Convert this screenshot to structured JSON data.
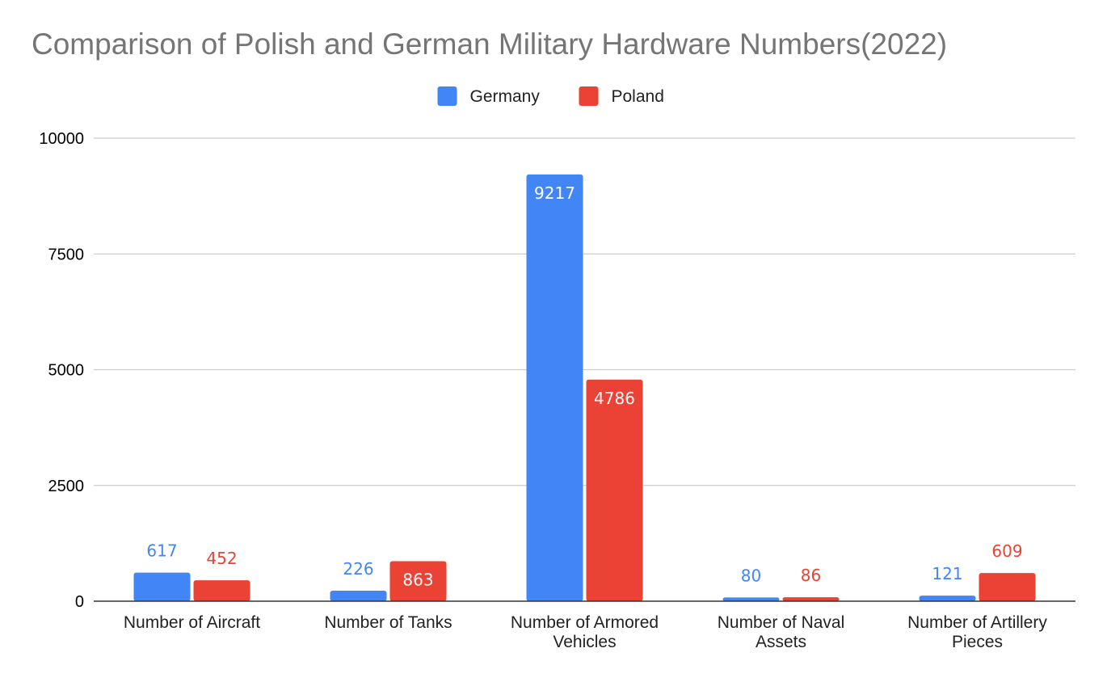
{
  "chart_data": {
    "type": "bar",
    "title": "Comparison of Polish and German Military Hardware Numbers(2022)",
    "categories": [
      [
        "Number of Aircraft"
      ],
      [
        "Number of Tanks"
      ],
      [
        "Number of Armored",
        "Vehicles"
      ],
      [
        "Number of Naval",
        "Assets"
      ],
      [
        "Number of Artillery",
        "Pieces"
      ]
    ],
    "series": [
      {
        "name": "Germany",
        "color": "#4285f4",
        "values": [
          617,
          226,
          9217,
          80,
          121
        ]
      },
      {
        "name": "Poland",
        "color": "#ea4335",
        "values": [
          452,
          863,
          4786,
          86,
          609
        ]
      }
    ],
    "ylim": [
      0,
      10000
    ],
    "yticks": [
      0,
      2500,
      5000,
      7500,
      10000
    ],
    "xlabel": "",
    "ylabel": "",
    "grid": true,
    "legend": "top-center"
  }
}
